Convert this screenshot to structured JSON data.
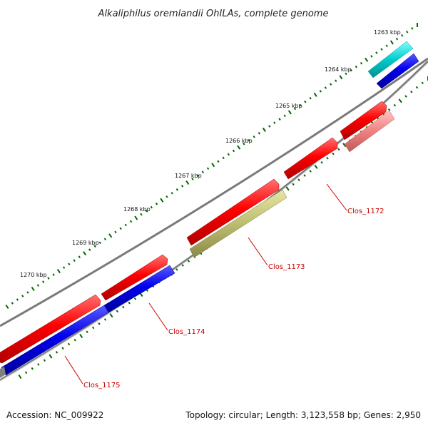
{
  "title": "Alkaliphilus oremlandii OhILAs, complete genome",
  "kbp_labels": [
    "1263 kbp",
    "1264 kbp",
    "1265 kbp",
    "1266 kbp",
    "1267 kbp",
    "1268 kbp",
    "1269 kbp",
    "1270 kbp"
  ],
  "gene_labels": [
    "Clos_1172",
    "Clos_1173",
    "Clos_1174",
    "Clos_1175"
  ],
  "footer": {
    "accession": "Accession: NC_009922",
    "summary": "Topology: circular; Length: 3,123,558 bp; Genes: 2,950"
  },
  "colors": {
    "backbone": "#7a7a7a",
    "forward_cds": "#ff0000",
    "reverse_cds": "#0000ee",
    "cyan_feature": "#00cccc",
    "olive_feature": "#bdbd70",
    "pink_feature": "#f08080",
    "tick": "#006600",
    "gene_label": "#cc0000"
  }
}
